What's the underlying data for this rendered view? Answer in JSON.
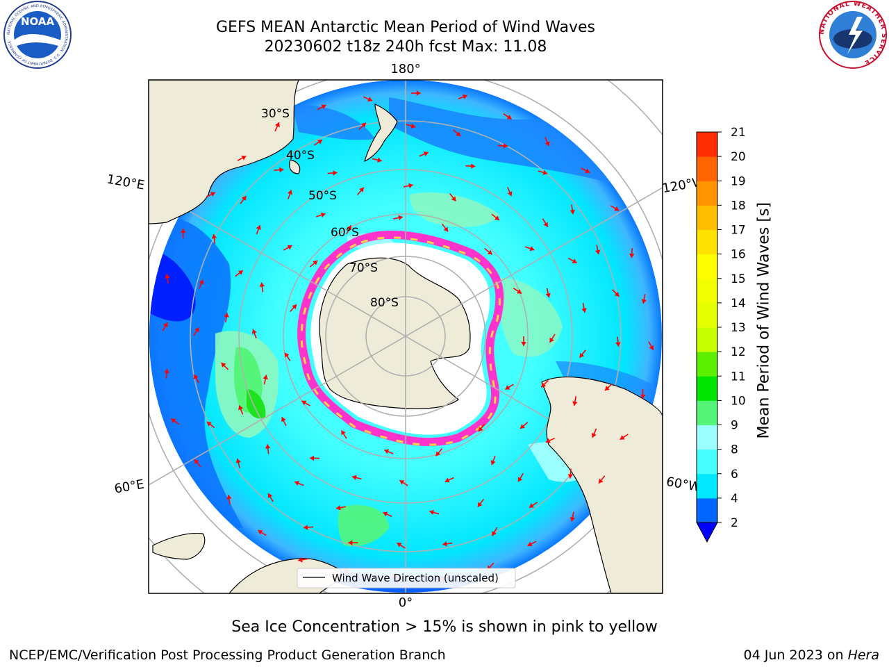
{
  "header": {
    "title_line1": "GEFS MEAN Antarctic Mean Period of Wind Waves",
    "title_line2": "20230602 t18z 240h fcst   Max: 11.08"
  },
  "logos": {
    "left": "NOAA",
    "left_ring": "NATIONAL OCEANIC AND ATMOSPHERIC ADMINISTRATION · U.S. DEPARTMENT OF COMMERCE",
    "right_ring": "NATIONAL WEATHER SERVICE"
  },
  "map": {
    "projection": "south-polar-stereographic",
    "lon_labels": {
      "top": "180°",
      "bottom": "0°",
      "left_upper": "120°E",
      "left_lower": "60°E",
      "right_upper": "120°W",
      "right_lower": "60°W"
    },
    "lat_labels": [
      "30°S",
      "40°S",
      "50°S",
      "60°S",
      "70°S",
      "80°S"
    ],
    "legend": "Wind Wave Direction (unscaled)",
    "arrow_color": "#ff0000",
    "ice_colors": [
      "#ff33cc",
      "#ffd24a"
    ],
    "land_color": "#efebd9",
    "max_value": 11.08
  },
  "colorbar": {
    "label": "Mean Period of Wind Waves [s]",
    "ticks": [
      2,
      4,
      6,
      8,
      9,
      10,
      11,
      12,
      13,
      14,
      15,
      16,
      17,
      18,
      19,
      20,
      21
    ],
    "colors": [
      "#0066ff",
      "#00e8ff",
      "#47ffff",
      "#9cffff",
      "#55f57a",
      "#00e400",
      "#5cf000",
      "#c8ff00",
      "#e4ff00",
      "#f2ff00",
      "#ffff00",
      "#ffe200",
      "#ffbf00",
      "#ff9400",
      "#ff6400",
      "#ff2d00",
      "#ff0000"
    ],
    "extend_color": "#0000ff"
  },
  "caption": "Sea Ice Concentration > 15% is shown in pink to yellow",
  "footer": {
    "left": "NCEP/EMC/Verification Post Processing Product Generation Branch",
    "right_date": "04 Jun 2023 on",
    "right_host": "Hera"
  }
}
